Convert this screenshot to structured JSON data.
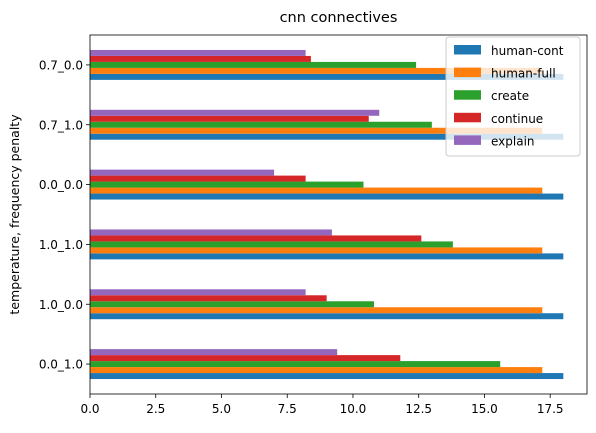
{
  "chart_data": {
    "type": "bar",
    "orientation": "horizontal",
    "title": "cnn connectives",
    "xlabel": "",
    "ylabel": "temperature, frequency penalty",
    "categories": [
      "0.0_1.0",
      "1.0_0.0",
      "1.0_1.0",
      "0.0_0.0",
      "0.7_1.0",
      "0.7_0.0"
    ],
    "xlim": [
      0,
      18.9
    ],
    "xticks": [
      "0.0",
      "2.5",
      "5.0",
      "7.5",
      "10.0",
      "12.5",
      "15.0",
      "17.5"
    ],
    "xtick_values": [
      0,
      2.5,
      5,
      7.5,
      10,
      12.5,
      15,
      17.5
    ],
    "grid": false,
    "legend_position": "top-right",
    "series": [
      {
        "name": "human-cont",
        "color": "#1f77b4",
        "values": [
          18.0,
          18.0,
          18.0,
          18.0,
          18.0,
          18.0
        ]
      },
      {
        "name": "human-full",
        "color": "#ff7f0e",
        "values": [
          17.2,
          17.2,
          17.2,
          17.2,
          17.2,
          17.2
        ]
      },
      {
        "name": "create",
        "color": "#2ca02c",
        "values": [
          15.6,
          10.8,
          13.8,
          10.4,
          13.0,
          12.4
        ]
      },
      {
        "name": "continue",
        "color": "#d62728",
        "values": [
          11.8,
          9.0,
          12.6,
          8.2,
          10.6,
          8.4
        ]
      },
      {
        "name": "explain",
        "color": "#9467bd",
        "values": [
          9.4,
          8.2,
          9.2,
          7.0,
          11.0,
          8.2
        ]
      }
    ]
  }
}
